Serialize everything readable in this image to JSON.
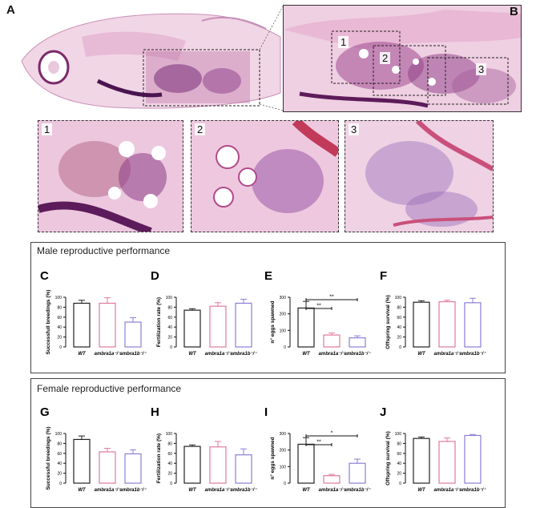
{
  "panels": {
    "A": "A",
    "B": "B",
    "inset1": "1",
    "inset2": "2",
    "inset3": "3"
  },
  "sections": {
    "male": {
      "title": "Male reproductive performance"
    },
    "female": {
      "title": "Female reproductive performance"
    }
  },
  "colors": {
    "wt": "#222222",
    "ambra1a": "#e07a9a",
    "ambra1b": "#8a7fd6"
  },
  "groups": [
    "WT",
    "ambra1a⁻/⁻",
    "ambra1b⁻/⁻"
  ],
  "chart_data": [
    {
      "panel": "C",
      "type": "bar",
      "ylabel": "Successfull breedings (%)",
      "ylim": [
        0,
        100
      ],
      "yticks": [
        0,
        20,
        40,
        60,
        80,
        100
      ],
      "categories": [
        "WT",
        "ambra1a-/-",
        "ambra1b-/-"
      ],
      "values": [
        88,
        88,
        50
      ],
      "errors": [
        6,
        11,
        9
      ],
      "sig": []
    },
    {
      "panel": "D",
      "type": "bar",
      "ylabel": "Fertilization rate (%)",
      "ylim": [
        0,
        100
      ],
      "yticks": [
        0,
        20,
        40,
        60,
        80,
        100
      ],
      "categories": [
        "WT",
        "ambra1a-/-",
        "ambra1b-/-"
      ],
      "values": [
        74,
        82,
        88
      ],
      "errors": [
        3,
        7,
        8
      ],
      "sig": []
    },
    {
      "panel": "E",
      "type": "bar",
      "ylabel": "n° eggs spawned",
      "ylim": [
        0,
        300
      ],
      "yticks": [
        0,
        100,
        200,
        300
      ],
      "categories": [
        "WT",
        "ambra1a-/-",
        "ambra1b-/-"
      ],
      "values": [
        235,
        72,
        55
      ],
      "errors": [
        40,
        12,
        12
      ],
      "sig": [
        {
          "from": 0,
          "to": 1,
          "label": "**"
        },
        {
          "from": 0,
          "to": 2,
          "label": "**"
        }
      ]
    },
    {
      "panel": "F",
      "type": "bar",
      "ylabel": "Offspring survival (%)",
      "ylim": [
        0,
        100
      ],
      "yticks": [
        0,
        20,
        40,
        60,
        80,
        100
      ],
      "categories": [
        "WT",
        "ambra1a-/-",
        "ambra1b-/-"
      ],
      "values": [
        90,
        91,
        89
      ],
      "errors": [
        3,
        3,
        9
      ],
      "sig": []
    },
    {
      "panel": "G",
      "type": "bar",
      "ylabel": "Successful breedings (%)",
      "ylim": [
        0,
        100
      ],
      "yticks": [
        0,
        20,
        40,
        60,
        80,
        100
      ],
      "categories": [
        "WT",
        "ambra1a-/-",
        "ambra1b-/-"
      ],
      "values": [
        88,
        63,
        59
      ],
      "errors": [
        7,
        7,
        8
      ],
      "sig": []
    },
    {
      "panel": "H",
      "type": "bar",
      "ylabel": "Fertilization rate (%)",
      "ylim": [
        0,
        100
      ],
      "yticks": [
        0,
        20,
        40,
        60,
        80,
        100
      ],
      "categories": [
        "WT",
        "ambra1a-/-",
        "ambra1b-/-"
      ],
      "values": [
        74,
        73,
        57
      ],
      "errors": [
        3,
        11,
        12
      ],
      "sig": []
    },
    {
      "panel": "I",
      "type": "bar",
      "ylabel": "n° eggs spawned",
      "ylim": [
        0,
        300
      ],
      "yticks": [
        0,
        100,
        200,
        300
      ],
      "categories": [
        "WT",
        "ambra1a-/-",
        "ambra1b-/-"
      ],
      "values": [
        235,
        45,
        120
      ],
      "errors": [
        40,
        8,
        25
      ],
      "sig": [
        {
          "from": 0,
          "to": 1,
          "label": "**"
        },
        {
          "from": 0,
          "to": 2,
          "label": "*"
        }
      ]
    },
    {
      "panel": "J",
      "type": "bar",
      "ylabel": "Offspring survival (%)",
      "ylim": [
        0,
        100
      ],
      "yticks": [
        0,
        20,
        40,
        60,
        80,
        100
      ],
      "categories": [
        "WT",
        "ambra1a-/-",
        "ambra1b-/-"
      ],
      "values": [
        90,
        84,
        96
      ],
      "errors": [
        3,
        7,
        2
      ],
      "sig": []
    }
  ]
}
